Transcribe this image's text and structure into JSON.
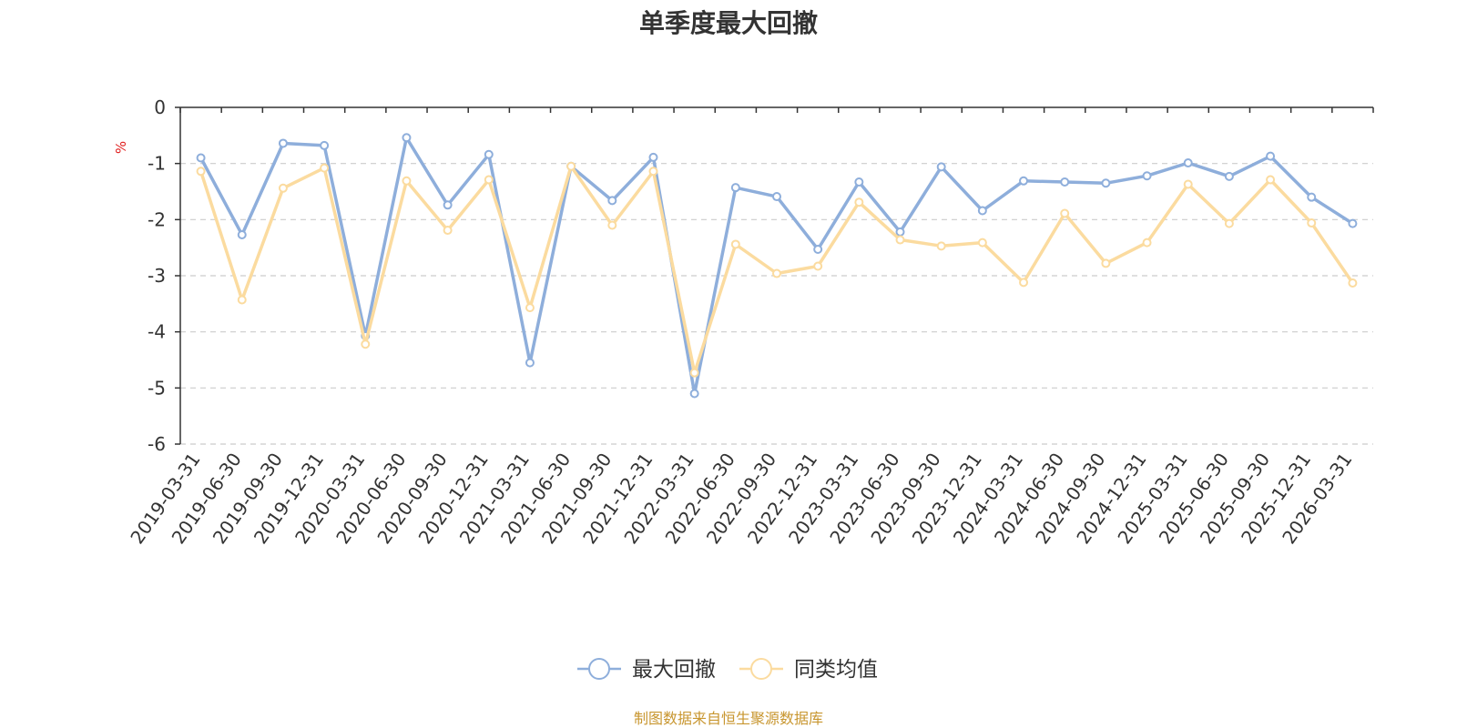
{
  "chart_data": {
    "type": "line",
    "title": "单季度最大回撤",
    "ylabel": "%",
    "ylim": [
      -6,
      0
    ],
    "yticks": [
      0,
      -1,
      -2,
      -3,
      -4,
      -5,
      -6
    ],
    "grid": true,
    "legend_position": "bottom",
    "x": [
      "2019-03-31",
      "2019-06-30",
      "2019-09-30",
      "2019-12-31",
      "2020-03-31",
      "2020-06-30",
      "2020-09-30",
      "2020-12-31",
      "2021-03-31",
      "2021-06-30",
      "2021-09-30",
      "2021-12-31",
      "2022-03-31",
      "2022-06-30",
      "2022-09-30",
      "2022-12-31",
      "2023-03-31",
      "2023-06-30",
      "2023-09-30",
      "2023-12-31",
      "2024-03-31",
      "2024-06-30",
      "2024-09-30",
      "2024-12-31",
      "2025-03-31",
      "2025-06-30",
      "2025-09-30",
      "2025-12-31",
      "2026-03-31"
    ],
    "series": [
      {
        "name": "最大回撤",
        "color": "#8eaedb",
        "values": [
          -0.9,
          -2.27,
          -0.64,
          -0.68,
          -4.07,
          -0.54,
          -1.74,
          -0.84,
          -4.55,
          -1.05,
          -1.66,
          -0.89,
          -5.1,
          -1.43,
          -1.59,
          -2.53,
          -1.33,
          -2.22,
          -1.06,
          -1.84,
          -1.31,
          -1.33,
          -1.35,
          -1.22,
          -0.99,
          -1.23,
          -0.87,
          -1.6,
          -2.07
        ]
      },
      {
        "name": "同类均值",
        "color": "#fbdb9f",
        "values": [
          -1.14,
          -3.43,
          -1.44,
          -1.08,
          -4.22,
          -1.31,
          -2.19,
          -1.29,
          -3.57,
          -1.05,
          -2.1,
          -1.14,
          -4.73,
          -2.44,
          -2.96,
          -2.83,
          -1.69,
          -2.36,
          -2.47,
          -2.41,
          -3.12,
          -1.89,
          -2.78,
          -2.41,
          -1.37,
          -2.07,
          -1.29,
          -2.06,
          -3.13
        ]
      }
    ]
  },
  "source_note": "制图数据来自恒生聚源数据库"
}
